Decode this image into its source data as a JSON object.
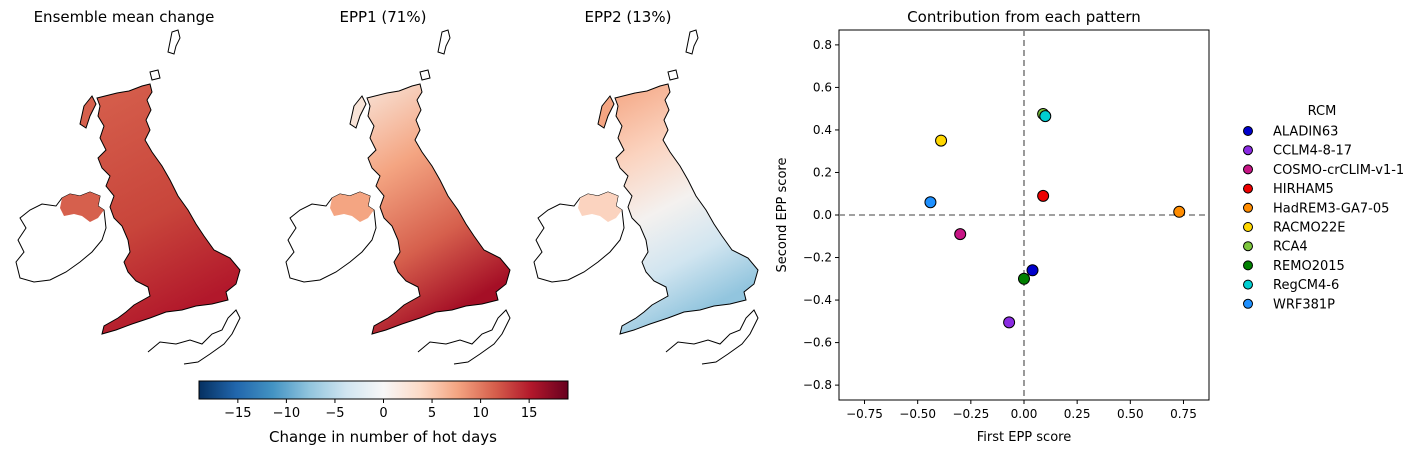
{
  "maps": {
    "panels": [
      {
        "title": "Ensemble mean change"
      },
      {
        "title": "EPP1 (71%)"
      },
      {
        "title": "EPP2 (13%)"
      }
    ],
    "colorbar": {
      "label": "Change in number of hot days",
      "range": [
        -19,
        19
      ],
      "ticks": [
        "−15",
        "−10",
        "−5",
        "0",
        "5",
        "10",
        "15"
      ],
      "tick_values": [
        -15,
        -10,
        -5,
        0,
        5,
        10,
        15
      ],
      "colormap": [
        "#053061",
        "#2166ac",
        "#4393c3",
        "#92c5de",
        "#d1e5f0",
        "#f7f7f7",
        "#fddbc7",
        "#f4a582",
        "#d6604d",
        "#b2182b",
        "#67001f"
      ]
    }
  },
  "chart_data": {
    "type": "scatter",
    "title": "Contribution from each pattern",
    "xlabel": "First EPP score",
    "ylabel": "Second EPP score",
    "xlim": [
      -0.87,
      0.87
    ],
    "ylim": [
      -0.87,
      0.87
    ],
    "xticks": [
      -0.75,
      -0.5,
      -0.25,
      0.0,
      0.25,
      0.5,
      0.75
    ],
    "xtick_labels": [
      "−0.75",
      "−0.50",
      "−0.25",
      "0.00",
      "0.25",
      "0.50",
      "0.75"
    ],
    "yticks": [
      0.8,
      0.6,
      0.4,
      0.2,
      0.0,
      -0.2,
      -0.4,
      -0.6,
      -0.8
    ],
    "ytick_labels": [
      "0.8",
      "0.6",
      "0.4",
      "0.2",
      "0.0",
      "−0.2",
      "−0.4",
      "−0.6",
      "−0.8"
    ],
    "grid": false,
    "reference_lines": {
      "x": 0,
      "y": 0
    },
    "legend": {
      "title": "RCM",
      "placement": "right, outside"
    },
    "series": [
      {
        "name": "ALADIN63",
        "color": "#0000cc",
        "x": 0.04,
        "y": -0.26
      },
      {
        "name": "CCLM4-8-17",
        "color": "#8a2be2",
        "x": -0.07,
        "y": -0.505
      },
      {
        "name": "COSMO-crCLIM-v1-1",
        "color": "#c71585",
        "x": -0.3,
        "y": -0.09
      },
      {
        "name": "HIRHAM5",
        "color": "#ee0000",
        "x": 0.09,
        "y": 0.09
      },
      {
        "name": "HadREM3-GA7-05",
        "color": "#ff8c00",
        "x": 0.73,
        "y": 0.015
      },
      {
        "name": "RACMO22E",
        "color": "#ffd700",
        "x": -0.39,
        "y": 0.35
      },
      {
        "name": "RCA4",
        "color": "#7cc53d",
        "x": 0.09,
        "y": 0.475
      },
      {
        "name": "REMO2015",
        "color": "#008000",
        "x": 0.0,
        "y": -0.3
      },
      {
        "name": "RegCM4-6",
        "color": "#00ced1",
        "x": 0.1,
        "y": 0.465
      },
      {
        "name": "WRF381P",
        "color": "#1e90ff",
        "x": -0.44,
        "y": 0.06
      }
    ]
  }
}
